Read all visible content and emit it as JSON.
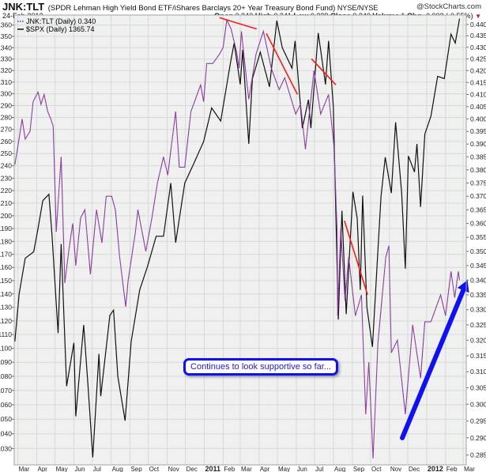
{
  "header": {
    "symbol": "JNK:TLT",
    "description": "(SPDR Lehman High Yield Bond ETF/iShares Barclays 20+ Year Treasury Bond Fund)",
    "exchange": "NYSE/NYSE",
    "brand": "@StockCharts.com",
    "date": "24-Feb-2012",
    "quote": {
      "open_label": "Open",
      "open": "0.340",
      "high_label": "High",
      "high": "0.341",
      "low_label": "Low",
      "low": "0.338",
      "close_label": "Close",
      "close": "0.340",
      "volume_label": "Volume",
      "volume": "1",
      "chg_label": "Chg",
      "chg": "-0.002 (-0.55%)",
      "chg_icon": "triangle-down-icon",
      "chg_color": "#c0103a"
    }
  },
  "legend": {
    "ratio": "JNK:TLT (Daily) 0.340",
    "spx": "$SPX (Daily) 1365.74"
  },
  "callout": {
    "text": "Continues to look supportive so far..."
  },
  "colors": {
    "plot_bg": "#f0f0f0",
    "grid": "#d3dcd3",
    "spx": "#111111",
    "ratio_a": "#3b3bd8",
    "ratio_b": "#c8306a",
    "trend": "#ff1a1a",
    "arrow": "#1010f0"
  },
  "chart_data": {
    "type": "line",
    "grid": true,
    "legend_placement": "top-left",
    "xlim": [
      "2010-02-23",
      "2012-03-06"
    ],
    "y_left": {
      "series": "$SPX",
      "scale": "log",
      "ylim": [
        1019,
        1369
      ],
      "ticks": [
        1030,
        1040,
        1050,
        1060,
        1070,
        1080,
        1090,
        1100,
        1110,
        1120,
        1130,
        1140,
        1150,
        1160,
        1170,
        1180,
        1190,
        1200,
        1210,
        1220,
        1230,
        1240,
        1250,
        1260,
        1270,
        1280,
        1290,
        1300,
        1310,
        1320,
        1330,
        1340,
        1350,
        1360
      ]
    },
    "y_right": {
      "series": "JNK:TLT",
      "scale": "log",
      "ylim": [
        0.2822,
        0.4442
      ],
      "ticks": [
        "0.285",
        "0.290",
        "0.295",
        "0.300",
        "0.305",
        "0.310",
        "0.315",
        "0.320",
        "0.325",
        "0.330",
        "0.335",
        "0.340",
        "0.345",
        "0.350",
        "0.355",
        "0.360",
        "0.365",
        "0.370",
        "0.375",
        "0.380",
        "0.385",
        "0.390",
        "0.395",
        "0.400",
        "0.405",
        "0.410",
        "0.415",
        "0.420",
        "0.425",
        "0.430",
        "0.435",
        "0.440"
      ]
    },
    "x_ticks": [
      {
        "date": "2010-03-01",
        "label": "Mar"
      },
      {
        "date": "2010-04-01",
        "label": "Apr"
      },
      {
        "date": "2010-05-01",
        "label": "May"
      },
      {
        "date": "2010-06-01",
        "label": "Jun"
      },
      {
        "date": "2010-07-01",
        "label": "Jul"
      },
      {
        "date": "2010-08-01",
        "label": "Aug"
      },
      {
        "date": "2010-09-01",
        "label": "Sep"
      },
      {
        "date": "2010-10-01",
        "label": "Oct"
      },
      {
        "date": "2010-11-01",
        "label": "Nov"
      },
      {
        "date": "2010-12-01",
        "label": "Dec"
      },
      {
        "date": "2011-01-01",
        "label": "2011",
        "bold": true
      },
      {
        "date": "2011-02-01",
        "label": "Feb"
      },
      {
        "date": "2011-03-01",
        "label": "Mar"
      },
      {
        "date": "2011-04-01",
        "label": "Apr"
      },
      {
        "date": "2011-05-01",
        "label": "May"
      },
      {
        "date": "2011-06-01",
        "label": "Jun"
      },
      {
        "date": "2011-07-01",
        "label": "Jul"
      },
      {
        "date": "2011-08-01",
        "label": "Aug"
      },
      {
        "date": "2011-09-01",
        "label": "Sep"
      },
      {
        "date": "2011-10-01",
        "label": "Oct"
      },
      {
        "date": "2011-11-01",
        "label": "Nov"
      },
      {
        "date": "2011-12-01",
        "label": "Dec"
      },
      {
        "date": "2012-01-01",
        "label": "2012",
        "bold": true
      },
      {
        "date": "2012-02-01",
        "label": "Feb"
      },
      {
        "date": "2012-03-01",
        "label": "Mar"
      }
    ],
    "series": [
      {
        "name": "$SPX (Daily)",
        "axis": "left",
        "style": "solid",
        "points": [
          [
            "2010-02-24",
            1105
          ],
          [
            "2010-03-03",
            1140
          ],
          [
            "2010-03-13",
            1167
          ],
          [
            "2010-03-27",
            1172
          ],
          [
            "2010-04-03",
            1190
          ],
          [
            "2010-04-11",
            1212
          ],
          [
            "2010-04-21",
            1217
          ],
          [
            "2010-04-26",
            1185
          ],
          [
            "2010-05-06",
            1111
          ],
          [
            "2010-05-11",
            1178
          ],
          [
            "2010-05-20",
            1073
          ],
          [
            "2010-06-01",
            1104
          ],
          [
            "2010-06-04",
            1052
          ],
          [
            "2010-06-17",
            1117
          ],
          [
            "2010-06-24",
            1074
          ],
          [
            "2010-07-02",
            1024
          ],
          [
            "2010-07-12",
            1096
          ],
          [
            "2010-07-15",
            1066
          ],
          [
            "2010-07-30",
            1124
          ],
          [
            "2010-08-05",
            1128
          ],
          [
            "2010-08-12",
            1080
          ],
          [
            "2010-08-24",
            1049
          ],
          [
            "2010-09-03",
            1105
          ],
          [
            "2010-09-17",
            1143
          ],
          [
            "2010-09-30",
            1161
          ],
          [
            "2010-10-14",
            1184
          ],
          [
            "2010-10-26",
            1184
          ],
          [
            "2010-11-07",
            1226
          ],
          [
            "2010-11-15",
            1179
          ],
          [
            "2010-11-30",
            1226
          ],
          [
            "2010-12-13",
            1240
          ],
          [
            "2010-12-31",
            1260
          ],
          [
            "2011-01-13",
            1288
          ],
          [
            "2011-01-28",
            1277
          ],
          [
            "2011-02-13",
            1327
          ],
          [
            "2011-02-19",
            1344
          ],
          [
            "2011-03-01",
            1308
          ],
          [
            "2011-03-05",
            1338
          ],
          [
            "2011-03-15",
            1258
          ],
          [
            "2011-03-21",
            1313
          ],
          [
            "2011-04-03",
            1336
          ],
          [
            "2011-04-18",
            1306
          ],
          [
            "2011-04-30",
            1364
          ],
          [
            "2011-05-09",
            1340
          ],
          [
            "2011-05-25",
            1322
          ],
          [
            "2011-05-30",
            1346
          ],
          [
            "2011-06-11",
            1271
          ],
          [
            "2011-06-21",
            1295
          ],
          [
            "2011-06-25",
            1271
          ],
          [
            "2011-07-07",
            1353
          ],
          [
            "2011-07-19",
            1308
          ],
          [
            "2011-07-24",
            1346
          ],
          [
            "2011-08-01",
            1288
          ],
          [
            "2011-08-09",
            1121
          ],
          [
            "2011-08-15",
            1204
          ],
          [
            "2011-08-22",
            1125
          ],
          [
            "2011-09-02",
            1219
          ],
          [
            "2011-09-09",
            1198
          ],
          [
            "2011-09-14",
            1143
          ],
          [
            "2011-09-18",
            1216
          ],
          [
            "2011-09-25",
            1130
          ],
          [
            "2011-10-04",
            1101
          ],
          [
            "2011-10-18",
            1215
          ],
          [
            "2011-10-25",
            1247
          ],
          [
            "2011-11-04",
            1218
          ],
          [
            "2011-11-11",
            1276
          ],
          [
            "2011-11-21",
            1218
          ],
          [
            "2011-11-27",
            1159
          ],
          [
            "2011-12-02",
            1248
          ],
          [
            "2011-12-12",
            1235
          ],
          [
            "2011-12-16",
            1258
          ],
          [
            "2011-12-22",
            1207
          ],
          [
            "2011-12-29",
            1266
          ],
          [
            "2012-01-08",
            1281
          ],
          [
            "2012-01-19",
            1315
          ],
          [
            "2012-01-30",
            1313
          ],
          [
            "2012-02-10",
            1352
          ],
          [
            "2012-02-17",
            1344
          ],
          [
            "2012-02-24",
            1365.74
          ]
        ]
      },
      {
        "name": "JNK:TLT (Daily)",
        "axis": "right",
        "style": "dotted",
        "points": [
          [
            "2010-02-24",
            0.382
          ],
          [
            "2010-03-01",
            0.389
          ],
          [
            "2010-03-08",
            0.4
          ],
          [
            "2010-03-13",
            0.392
          ],
          [
            "2010-03-21",
            0.395
          ],
          [
            "2010-03-26",
            0.407
          ],
          [
            "2010-04-03",
            0.411
          ],
          [
            "2010-04-08",
            0.406
          ],
          [
            "2010-04-13",
            0.41
          ],
          [
            "2010-04-19",
            0.403
          ],
          [
            "2010-04-24",
            0.4
          ],
          [
            "2010-04-28",
            0.397
          ],
          [
            "2010-05-03",
            0.357
          ],
          [
            "2010-05-11",
            0.385
          ],
          [
            "2010-05-17",
            0.339
          ],
          [
            "2010-05-24",
            0.351
          ],
          [
            "2010-05-30",
            0.36
          ],
          [
            "2010-06-04",
            0.345
          ],
          [
            "2010-06-12",
            0.362
          ],
          [
            "2010-06-19",
            0.365
          ],
          [
            "2010-06-28",
            0.342
          ],
          [
            "2010-07-08",
            0.365
          ],
          [
            "2010-07-17",
            0.353
          ],
          [
            "2010-07-24",
            0.37
          ],
          [
            "2010-08-02",
            0.37
          ],
          [
            "2010-08-08",
            0.365
          ],
          [
            "2010-08-15",
            0.348
          ],
          [
            "2010-08-25",
            0.331
          ],
          [
            "2010-08-29",
            0.34
          ],
          [
            "2010-09-10",
            0.357
          ],
          [
            "2010-09-14",
            0.365
          ],
          [
            "2010-09-27",
            0.35
          ],
          [
            "2010-10-07",
            0.362
          ],
          [
            "2010-10-16",
            0.375
          ],
          [
            "2010-10-26",
            0.385
          ],
          [
            "2010-11-02",
            0.378
          ],
          [
            "2010-11-15",
            0.403
          ],
          [
            "2010-11-21",
            0.381
          ],
          [
            "2010-11-30",
            0.381
          ],
          [
            "2010-12-10",
            0.403
          ],
          [
            "2010-12-26",
            0.414
          ],
          [
            "2010-12-31",
            0.407
          ],
          [
            "2011-01-05",
            0.423
          ],
          [
            "2011-01-15",
            0.423
          ],
          [
            "2011-01-26",
            0.427
          ],
          [
            "2011-02-01",
            0.43
          ],
          [
            "2011-02-07",
            0.442
          ],
          [
            "2011-02-14",
            0.438
          ],
          [
            "2011-02-23",
            0.428
          ],
          [
            "2011-02-27",
            0.421
          ],
          [
            "2011-03-03",
            0.437
          ],
          [
            "2011-03-11",
            0.417
          ],
          [
            "2011-03-15",
            0.408
          ],
          [
            "2011-03-27",
            0.427
          ],
          [
            "2011-04-08",
            0.437
          ],
          [
            "2011-04-21",
            0.421
          ],
          [
            "2011-05-04",
            0.412
          ],
          [
            "2011-05-13",
            0.417
          ],
          [
            "2011-05-31",
            0.402
          ],
          [
            "2011-06-08",
            0.406
          ],
          [
            "2011-06-16",
            0.388
          ],
          [
            "2011-06-30",
            0.42
          ],
          [
            "2011-07-11",
            0.402
          ],
          [
            "2011-07-24",
            0.41
          ],
          [
            "2011-08-02",
            0.389
          ],
          [
            "2011-08-07",
            0.357
          ],
          [
            "2011-08-08",
            0.328
          ],
          [
            "2011-08-13",
            0.358
          ],
          [
            "2011-08-20",
            0.333
          ],
          [
            "2011-08-26",
            0.348
          ],
          [
            "2011-09-06",
            0.328
          ],
          [
            "2011-09-16",
            0.335
          ],
          [
            "2011-09-23",
            0.297
          ],
          [
            "2011-09-28",
            0.313
          ],
          [
            "2011-10-05",
            0.284
          ],
          [
            "2011-10-13",
            0.319
          ],
          [
            "2011-10-26",
            0.348
          ],
          [
            "2011-10-31",
            0.352
          ],
          [
            "2011-11-04",
            0.316
          ],
          [
            "2011-11-14",
            0.32
          ],
          [
            "2011-11-27",
            0.297
          ],
          [
            "2011-12-09",
            0.325
          ],
          [
            "2011-12-22",
            0.308
          ],
          [
            "2011-12-29",
            0.326
          ],
          [
            "2012-01-08",
            0.326
          ],
          [
            "2012-01-24",
            0.335
          ],
          [
            "2012-02-01",
            0.328
          ],
          [
            "2012-02-10",
            0.343
          ],
          [
            "2012-02-16",
            0.334
          ],
          [
            "2012-02-22",
            0.343
          ],
          [
            "2012-02-24",
            0.34
          ]
        ]
      }
    ],
    "annotations": {
      "trend_lines": [
        {
          "axis": "right",
          "from": [
            "2011-01-26",
            0.443
          ],
          "to": [
            "2011-03-28",
            0.438
          ]
        },
        {
          "axis": "right",
          "from": [
            "2011-04-13",
            0.436
          ],
          "to": [
            "2011-06-03",
            0.41
          ]
        },
        {
          "axis": "right",
          "from": [
            "2011-06-26",
            0.425
          ],
          "to": [
            "2011-08-05",
            0.414
          ]
        },
        {
          "axis": "right",
          "from": [
            "2011-08-19",
            0.361
          ],
          "to": [
            "2011-09-26",
            0.335
          ]
        }
      ],
      "arrow": {
        "axis": "right",
        "from": [
          "2011-11-22",
          0.29
        ],
        "to": [
          "2012-03-08",
          0.34
        ]
      }
    }
  }
}
